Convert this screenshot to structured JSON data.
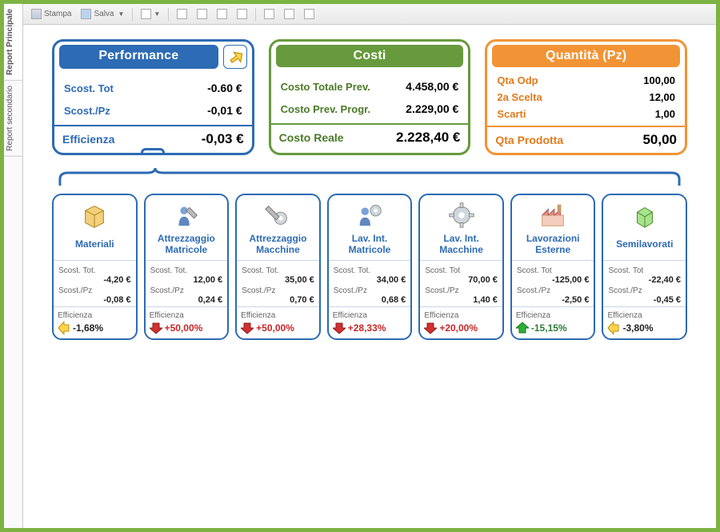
{
  "tabs": {
    "primary": "Report Principale",
    "secondary": "Report secondario"
  },
  "toolbar": {
    "stampa": "Stampa",
    "salva": "Salva"
  },
  "colors": {
    "blue": "#2d6bb4",
    "green": "#679a3d",
    "orange": "#f29436",
    "red_arrow_fill": "#d32f2f",
    "red_arrow_stroke": "#8a1e1e",
    "green_arrow_fill": "#2eae3a",
    "green_arrow_stroke": "#147a1e",
    "yellow_arrow_fill": "#ffd54f",
    "yellow_arrow_stroke": "#c68f00"
  },
  "performance": {
    "title": "Performance",
    "items": [
      {
        "label": "Scost. Tot",
        "value": "-0.60 €"
      },
      {
        "label": "Scost./Pz",
        "value": "-0,01 €"
      }
    ],
    "summary_label": "Efficienza",
    "summary_value": "-0,03 €"
  },
  "costi": {
    "title": "Costi",
    "items": [
      {
        "label": "Costo Totale Prev.",
        "value": "4.458,00 €"
      },
      {
        "label": "Costo Prev. Progr.",
        "value": "2.229,00 €"
      }
    ],
    "summary_label": "Costo Reale",
    "summary_value": "2.228,40 €"
  },
  "quantita": {
    "title": "Quantità (Pz)",
    "items": [
      {
        "label": "Qta Odp",
        "value": "100,00"
      },
      {
        "label": "2a Scelta",
        "value": "12,00"
      },
      {
        "label": "Scarti",
        "value": "1,00"
      }
    ],
    "summary_label": "Qta Prodotta",
    "summary_value": "50,00"
  },
  "row_common": {
    "scost_tot_label": "Scost. Tot.",
    "scost_pz_label": "Scost./Pz",
    "efficienza_label": "Efficienza"
  },
  "nodes": [
    {
      "title": "Materiali",
      "icon": "box",
      "scost_tot": "-4,20 €",
      "scost_pz": "-0,08 €",
      "eff": "-1,68%",
      "eff_dir": "left",
      "eff_style": "dark",
      "scost_tot_label_variant": "Scost. Tot."
    },
    {
      "title": "Attrezzaggio Matricole",
      "icon": "tool-person",
      "scost_tot": "12,00 €",
      "scost_pz": "0,24 €",
      "eff": "+50,00%",
      "eff_dir": "down",
      "eff_style": "red",
      "scost_tot_label_variant": "Scost. Tot."
    },
    {
      "title": "Attrezzaggio Macchine",
      "icon": "tool-gear",
      "scost_tot": "35,00 €",
      "scost_pz": "0,70 €",
      "eff": "+50,00%",
      "eff_dir": "down",
      "eff_style": "red",
      "scost_tot_label_variant": "Scost. Tot."
    },
    {
      "title": "Lav. Int. Matricole",
      "icon": "gear-person",
      "scost_tot": "34,00 €",
      "scost_pz": "0,68 €",
      "eff": "+28,33%",
      "eff_dir": "down",
      "eff_style": "red",
      "scost_tot_label_variant": "Scost. Tot."
    },
    {
      "title": "Lav. Int. Macchine",
      "icon": "gear",
      "scost_tot": "70,00 €",
      "scost_pz": "1,40 €",
      "eff": "+20,00%",
      "eff_dir": "down",
      "eff_style": "red",
      "scost_tot_label_variant": "Scost. Tot"
    },
    {
      "title": "Lavorazioni Esterne",
      "icon": "factory",
      "scost_tot": "-125,00 €",
      "scost_pz": "-2,50 €",
      "eff": "-15,15%",
      "eff_dir": "up",
      "eff_style": "green",
      "scost_tot_label_variant": "Scost. Tot"
    },
    {
      "title": "Semilavorati",
      "icon": "cube",
      "scost_tot": "-22,40 €",
      "scost_pz": "-0,45 €",
      "eff": "-3,80%",
      "eff_dir": "left",
      "eff_style": "dark",
      "scost_tot_label_variant": "Scost. Tot"
    }
  ]
}
